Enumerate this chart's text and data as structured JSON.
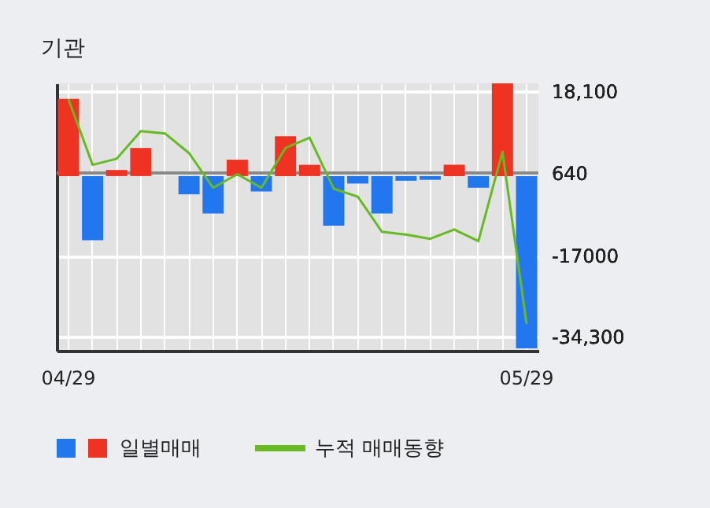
{
  "chart_data": {
    "type": "bar",
    "title": "기관",
    "categories": [
      "04/29",
      null,
      null,
      null,
      null,
      null,
      null,
      null,
      null,
      null,
      null,
      null,
      null,
      null,
      null,
      null,
      null,
      null,
      null,
      "05/29"
    ],
    "series": [
      {
        "name": "일별매매",
        "colors": [
          "#ee3322",
          "#2277ee",
          "#ee3322",
          "#ee3322",
          "#ee3322",
          "#2277ee",
          "#2277ee",
          "#ee3322",
          "#2277ee",
          "#ee3322",
          "#ee3322",
          "#2277ee",
          "#2277ee",
          "#2277ee",
          "#2277ee",
          "#2277ee",
          "#ee3322",
          "#2277ee",
          "#ee3322",
          "#2277ee"
        ],
        "values": [
          16500,
          -13700,
          1300,
          6000,
          0,
          -3900,
          -8000,
          3500,
          -3300,
          8500,
          2400,
          -10600,
          -1600,
          -8000,
          -1000,
          -800,
          2400,
          -2500,
          19800,
          -36800
        ]
      },
      {
        "name": "누적 매매동향",
        "type": "line",
        "color": "#66bb22",
        "values": [
          16400,
          2400,
          3700,
          9600,
          9100,
          4900,
          -2500,
          400,
          -2500,
          6000,
          8200,
          -2700,
          -4400,
          -11900,
          -12500,
          -13400,
          -11400,
          -13900,
          5200,
          -31600
        ]
      }
    ],
    "ylim": [
      -37300,
      19800
    ],
    "yticks": [
      {
        "value": 18100,
        "label": "18,100"
      },
      640,
      -17000,
      {
        "value": -34300,
        "label": "-34,300"
      }
    ],
    "ref_lines": [
      {
        "axis": "y",
        "value": 640,
        "color": "#888888"
      }
    ],
    "grid": true,
    "legend": "bottom"
  }
}
